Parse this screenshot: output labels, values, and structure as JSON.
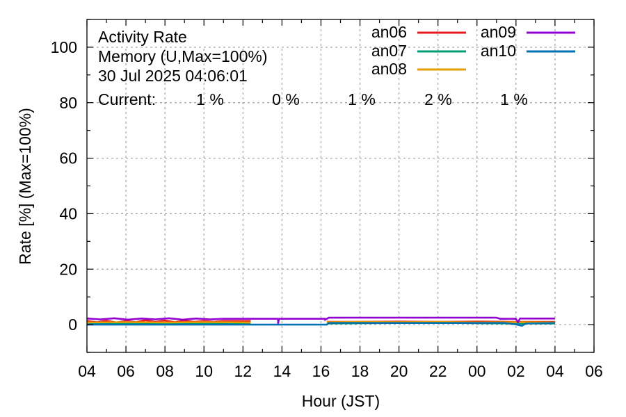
{
  "chart_data": {
    "type": "line",
    "title_lines": [
      "Activity Rate",
      "Memory (U,Max=100%)",
      "30 Jul 2025 04:06:01"
    ],
    "current_label": "Current:",
    "xlabel": "Hour (JST)",
    "ylabel": "Rate [%]  (Max=100%)",
    "x_tick_labels": [
      "04",
      "06",
      "08",
      "10",
      "12",
      "14",
      "16",
      "18",
      "20",
      "22",
      "00",
      "02",
      "04",
      "06"
    ],
    "x_range_hours": [
      0,
      26
    ],
    "ylim": [
      -10,
      110
    ],
    "y_ticks": [
      0,
      20,
      40,
      60,
      80,
      100
    ],
    "grid": true,
    "legend_position": "top-right",
    "series": [
      {
        "name": "an06",
        "color": "#e41a1c",
        "current": "1 %",
        "segments": [
          [
            [
              0.0,
              1.3
            ],
            [
              0.5,
              0.9
            ],
            [
              1.0,
              1.4
            ],
            [
              1.5,
              0.8
            ],
            [
              2.0,
              1.3
            ],
            [
              2.5,
              0.9
            ],
            [
              3.0,
              1.6
            ],
            [
              3.5,
              1.0
            ],
            [
              4.0,
              1.5
            ],
            [
              4.5,
              0.9
            ],
            [
              5.0,
              1.4
            ],
            [
              5.5,
              1.0
            ],
            [
              6.0,
              1.3
            ],
            [
              6.5,
              1.0
            ],
            [
              7.0,
              1.3
            ],
            [
              8.4,
              1.3
            ]
          ],
          [
            [
              12.3,
              1.0
            ],
            [
              14.0,
              1.0
            ],
            [
              16.0,
              1.1
            ],
            [
              18.0,
              1.0
            ],
            [
              20.0,
              1.1
            ],
            [
              22.0,
              1.0
            ],
            [
              24.0,
              1.0
            ]
          ]
        ]
      },
      {
        "name": "an07",
        "color": "#009e73",
        "current": "0 %",
        "segments": [
          [
            [
              0.0,
              0.3
            ],
            [
              2.0,
              0.4
            ],
            [
              4.0,
              0.3
            ],
            [
              6.0,
              0.4
            ],
            [
              8.4,
              0.3
            ]
          ],
          [
            [
              12.3,
              0.4
            ],
            [
              14.0,
              0.5
            ],
            [
              16.0,
              0.6
            ],
            [
              18.0,
              0.7
            ],
            [
              20.0,
              0.5
            ],
            [
              22.0,
              0.4
            ],
            [
              24.0,
              0.4
            ]
          ]
        ]
      },
      {
        "name": "an08",
        "color": "#e69f00",
        "current": "1 %",
        "segments": [
          [
            [
              0.0,
              0.8
            ],
            [
              2.0,
              0.9
            ],
            [
              4.0,
              0.8
            ],
            [
              6.0,
              0.9
            ],
            [
              8.4,
              0.8
            ]
          ],
          [
            [
              12.3,
              0.9
            ],
            [
              14.0,
              1.0
            ],
            [
              16.0,
              0.9
            ],
            [
              18.0,
              1.0
            ],
            [
              20.0,
              0.8
            ],
            [
              22.0,
              0.9
            ],
            [
              24.0,
              0.8
            ]
          ]
        ]
      },
      {
        "name": "an09",
        "color": "#9400d3",
        "current": "2 %",
        "segments": [
          [
            [
              0.0,
              2.2
            ],
            [
              0.7,
              1.9
            ],
            [
              1.4,
              2.3
            ],
            [
              2.1,
              1.8
            ],
            [
              2.8,
              2.2
            ],
            [
              3.5,
              1.9
            ],
            [
              4.2,
              2.3
            ],
            [
              4.9,
              1.8
            ],
            [
              5.6,
              2.2
            ],
            [
              6.3,
              1.9
            ],
            [
              7.0,
              2.1
            ],
            [
              8.4,
              2.1
            ],
            [
              9.8,
              2.1
            ],
            [
              9.8,
              0.5
            ],
            [
              9.85,
              2.1
            ],
            [
              12.2,
              2.1
            ],
            [
              12.2,
              1.7
            ],
            [
              12.4,
              2.5
            ],
            [
              17.0,
              2.5
            ],
            [
              21.0,
              2.5
            ],
            [
              21.2,
              2.1
            ],
            [
              22.0,
              2.1
            ],
            [
              22.1,
              0.8
            ],
            [
              22.2,
              2.2
            ],
            [
              24.0,
              2.2
            ]
          ]
        ]
      },
      {
        "name": "an10",
        "color": "#0072b2",
        "current": "1 %",
        "segments": [
          [
            [
              0.0,
              0.0
            ],
            [
              4.0,
              0.0
            ],
            [
              8.4,
              0.0
            ],
            [
              10.0,
              0.0
            ],
            [
              12.0,
              0.0
            ],
            [
              12.3,
              0.0
            ],
            [
              12.4,
              0.6
            ],
            [
              14.0,
              0.6
            ],
            [
              16.0,
              0.6
            ],
            [
              18.0,
              0.6
            ],
            [
              20.0,
              0.6
            ],
            [
              21.4,
              0.6
            ],
            [
              22.0,
              0.1
            ],
            [
              22.3,
              -0.4
            ],
            [
              22.5,
              0.4
            ],
            [
              24.0,
              0.6
            ]
          ]
        ]
      }
    ]
  }
}
